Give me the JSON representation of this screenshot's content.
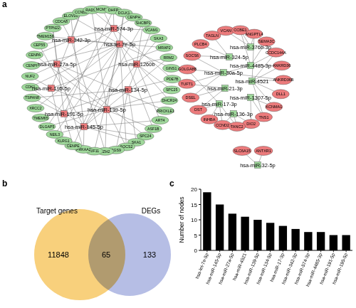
{
  "panel_labels": [
    "a",
    "b",
    "c"
  ],
  "network": {
    "left": {
      "genes": [
        "CDCA8",
        "ELOVL6",
        "CCNB1",
        "RAD51",
        "MCM10",
        "DHFR",
        "DCLK1",
        "CENPH",
        "SHCBP1",
        "VCAM1",
        "SKA3",
        "MRAP2",
        "RRM2",
        "GINS1",
        "PDE7B",
        "SPC25",
        "DHCR24",
        "PRICKLE1",
        "ART4",
        "ASF1B",
        "SPC24",
        "SKA1",
        "SOCS2",
        "RGS9",
        "EZH2",
        "KIF11",
        "PRKAA2",
        "CENPE",
        "KLRG1",
        "NEIL3",
        "DLGAP5",
        "TMEM65",
        "XRCC2",
        "TSPAN8",
        "CDK1",
        "NUF2",
        "CENPI",
        "CENPA",
        "CEP55",
        "TMEM156",
        "PTPN22"
      ],
      "mirnas": [
        {
          "label": "hsa-miR-574-3p",
          "targets": [
            3,
            5,
            9,
            14,
            30,
            38
          ]
        },
        {
          "label": "hsa-let-7e-5p",
          "targets": [
            1,
            4,
            6,
            10,
            13,
            16,
            19,
            22,
            25,
            27,
            29,
            32,
            34,
            36,
            39
          ]
        },
        {
          "label": "hsa-miR-342-3p",
          "targets": [
            0,
            2,
            11,
            24,
            37
          ]
        },
        {
          "label": "hsa-miR-1260b",
          "targets": [
            8,
            12,
            15,
            18
          ]
        },
        {
          "label": "hsa-miR-27a-5p",
          "targets": [
            7,
            20,
            26,
            35,
            40,
            17
          ]
        },
        {
          "label": "hsa-miR-134-5p",
          "targets": [
            14,
            21,
            23,
            31,
            33,
            9
          ]
        },
        {
          "label": "hsa-miR-195-5p",
          "targets": [
            11,
            19,
            28,
            35,
            2
          ]
        },
        {
          "label": "hsa-miR-139-5p",
          "targets": [
            6,
            15,
            22,
            24,
            30,
            37,
            3
          ]
        },
        {
          "label": "hsa-miR-191-5p",
          "targets": [
            5,
            16,
            27,
            33,
            40
          ]
        },
        {
          "label": "hsa-miR-145-5p",
          "targets": [
            1,
            8,
            12,
            18,
            20,
            26,
            29,
            34,
            38,
            10,
            21
          ]
        }
      ]
    },
    "right": {
      "genes": [
        "TAGLN",
        "VCAN",
        "CCBE1",
        "ANGPTL4",
        "SEMA3C",
        "CCDC144A",
        "ANKRD36",
        "ANKRD36B",
        "DLL1",
        "KCNMA1",
        "TNS1",
        "DIO2",
        "TANC2",
        "CCND2",
        "INHBA",
        "DST",
        "DSEL",
        "TUFT1",
        "GOLGA8B",
        "SOCS6",
        "PLCB4"
      ],
      "mirnas": [
        {
          "label": "hsa-miR-376b-3p",
          "targets": [
            1,
            2,
            3
          ]
        },
        {
          "label": "hsa-miR-324-5p",
          "targets": [
            0,
            19,
            20
          ]
        },
        {
          "label": "hsa-miR-4485-3p",
          "targets": [
            4,
            5,
            6,
            2,
            17
          ]
        },
        {
          "label": "hsa-miR-30a-5p",
          "targets": [
            18,
            19,
            16,
            7
          ]
        },
        {
          "label": "hsa-miR-4521",
          "targets": [
            6,
            7,
            8,
            9,
            5,
            10,
            3
          ]
        },
        {
          "label": "hsa-miR-21-3p",
          "targets": [
            15,
            16,
            17
          ]
        },
        {
          "label": "hsa-miR-1307-5p",
          "targets": [
            9,
            10,
            11
          ]
        },
        {
          "label": "hsa-miR-17-3p",
          "targets": [
            13,
            14,
            15,
            12,
            18
          ]
        },
        {
          "label": "hsa-miR-136-3p",
          "targets": [
            11,
            12,
            13
          ]
        }
      ]
    },
    "small": {
      "genes": [
        "SLC6A15",
        "ANTXR1"
      ],
      "mirnas": [
        {
          "label": "hsa-miR-32-5p",
          "targets": [
            0,
            1
          ]
        }
      ]
    }
  },
  "venn": {
    "sets": [
      {
        "label": "Target genes",
        "only": 11848,
        "color": "#f8d07c"
      },
      {
        "label": "DEGs",
        "only": 133,
        "color": "#9ea8dc"
      }
    ],
    "overlap": 65
  },
  "chart_data": {
    "type": "bar",
    "categories": [
      "hsa-let-7e-5p",
      "hsa-miR-145-5p",
      "hsa-miR-27a-5p",
      "hsa-miR-4521",
      "hsa-miR-139-5p",
      "hsa-miR-134-5p",
      "hsa-miR-17-3p",
      "hsa-miR-342-3p",
      "hsa-miR-574-3p",
      "hsa-miR-4485-3p",
      "hsa-miR-191-5p",
      "hsa-miR-195-5p"
    ],
    "values": [
      19,
      15,
      12,
      11,
      10,
      9,
      8,
      7,
      6,
      6,
      5,
      5
    ],
    "color": "#000000",
    "ylim": [
      0,
      20
    ],
    "yticks": [
      0,
      5,
      10,
      15,
      20
    ],
    "y_label": "Number of nodes"
  }
}
